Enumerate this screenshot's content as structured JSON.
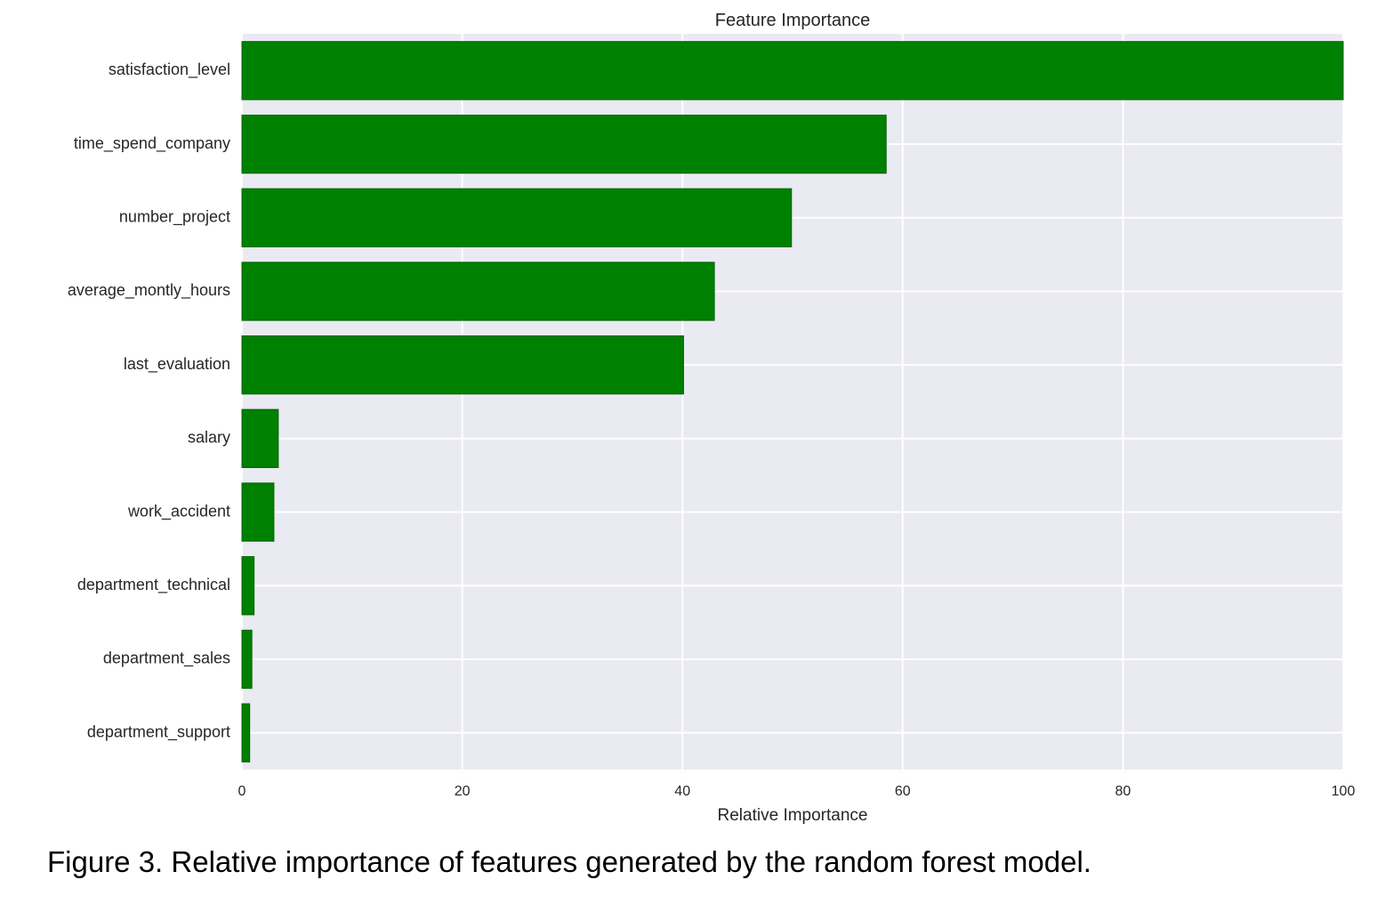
{
  "caption": "Figure 3. Relative importance of features generated by the random forest model.",
  "colors": {
    "bar_fill": "#008000",
    "bar_edge": "#006400",
    "plot_background": "#EAEAF2",
    "grid": "#FFFFFF"
  },
  "chart_data": {
    "type": "bar",
    "orientation": "horizontal",
    "title": "Feature Importance",
    "xlabel": "Relative Importance",
    "ylabel": "",
    "xlim": [
      0,
      100
    ],
    "xticks": [
      0,
      20,
      40,
      60,
      80,
      100
    ],
    "grid": true,
    "categories": [
      "satisfaction_level",
      "time_spend_company",
      "number_project",
      "average_montly_hours",
      "last_evaluation",
      "salary",
      "work_accident",
      "department_technical",
      "department_sales",
      "department_support"
    ],
    "values": [
      100,
      58.5,
      49.9,
      42.9,
      40.1,
      3.3,
      2.9,
      1.1,
      0.9,
      0.7
    ]
  }
}
